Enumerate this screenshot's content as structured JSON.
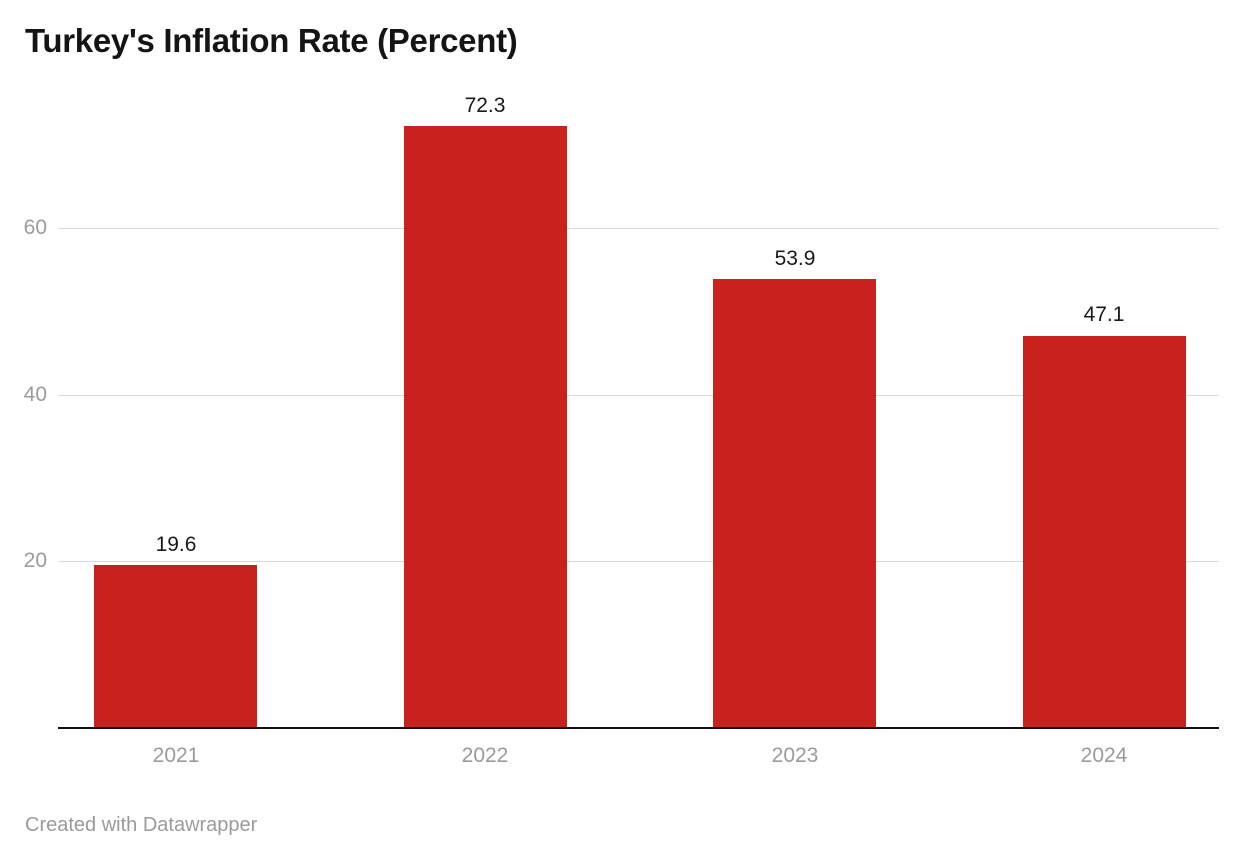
{
  "header": {
    "title": "Turkey's Inflation Rate (Percent)"
  },
  "footer": {
    "credit": "Created with Datawrapper"
  },
  "colors": {
    "bar": "#c9211e",
    "gridline": "#dadada",
    "axis_text": "#9b9b9b",
    "value_text": "#1a1a1a",
    "title_text": "#141414",
    "baseline": "#111111",
    "background": "#ffffff"
  },
  "chart_data": {
    "type": "bar",
    "title": "Turkey's Inflation Rate (Percent)",
    "categories": [
      "2021",
      "2022",
      "2023",
      "2024"
    ],
    "values": [
      19.6,
      72.3,
      53.9,
      47.1
    ],
    "value_labels": [
      "19.6",
      "72.3",
      "53.9",
      "47.1"
    ],
    "yticks": [
      20,
      40,
      60
    ],
    "ytick_labels": [
      "20",
      "40",
      "60"
    ],
    "ylim": [
      0,
      75
    ],
    "xlabel": "",
    "ylabel": "",
    "grid": "horizontal",
    "legend": "none",
    "bar_color": "#c9211e",
    "credit": "Created with Datawrapper"
  }
}
